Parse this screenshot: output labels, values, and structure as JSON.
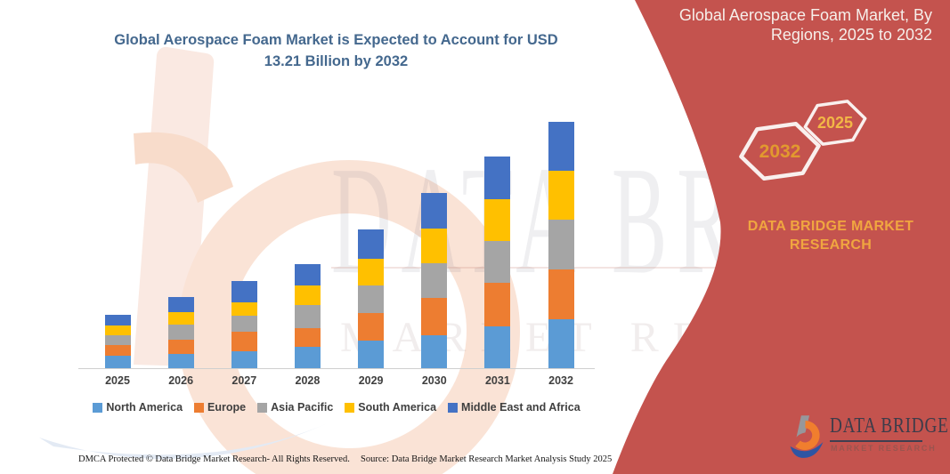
{
  "main_title": {
    "line1": "Global Aerospace Foam Market is Expected to Account for USD",
    "line2": "13.21 Billion by 2032"
  },
  "chart_data": {
    "type": "bar",
    "stacked": true,
    "title": "Global Aerospace Foam Market is Expected to Account for USD 13.21 Billion by 2032",
    "unit": "USD Billion",
    "categories": [
      "2025",
      "2026",
      "2027",
      "2028",
      "2029",
      "2030",
      "2031",
      "2032"
    ],
    "series": [
      {
        "name": "North America",
        "color": "#5B9BD5",
        "values": [
          0.71,
          0.79,
          0.95,
          1.19,
          1.54,
          1.81,
          2.27,
          2.66
        ]
      },
      {
        "name": "Europe",
        "color": "#ED7D31",
        "values": [
          0.56,
          0.79,
          1.06,
          0.98,
          1.46,
          2.0,
          2.33,
          2.68
        ]
      },
      {
        "name": "Asia Pacific",
        "color": "#A5A5A5",
        "values": [
          0.55,
          0.79,
          0.84,
          1.24,
          1.46,
          1.85,
          2.23,
          2.63
        ]
      },
      {
        "name": "South America",
        "color": "#FFC000",
        "values": [
          0.51,
          0.68,
          0.71,
          1.06,
          1.43,
          1.85,
          2.23,
          2.61
        ]
      },
      {
        "name": "Middle East and Africa",
        "color": "#4472C4",
        "values": [
          0.57,
          0.79,
          1.14,
          1.16,
          1.58,
          1.9,
          2.31,
          2.64
        ]
      }
    ],
    "estimated_totals": [
      2.9,
      3.84,
      4.7,
      5.63,
      7.47,
      9.41,
      11.37,
      13.22
    ],
    "ylim": [
      0,
      13.21
    ],
    "gridlines": false,
    "y_axis_visible": false,
    "legend_position": "bottom"
  },
  "footer": {
    "dmca": "DMCA Protected © Data Bridge Market Research-  All Rights Reserved.",
    "source": "Source: Data Bridge Market Research  Market Analysis Study 2025"
  },
  "side_panel": {
    "title_line1": "Global Aerospace Foam Market, By",
    "title_line2": "Regions, 2025 to 2032",
    "hexagons": [
      {
        "year": "2032"
      },
      {
        "year": "2025"
      }
    ],
    "caption_line1": "DATA BRIDGE MARKET",
    "caption_line2": "RESEARCH",
    "logo": {
      "wordmark": "DATA BRIDGE",
      "subtitle": "MARKET RESEARCH"
    }
  },
  "watermark": {
    "brand_text": "DATA BRIDGE",
    "brand_subtext": "MARKET RESEARCH"
  },
  "colors": {
    "panel_red": "#C4534E",
    "title_blue": "#44688E",
    "panel_title_text": "#F6EFEA",
    "gold_caption": "#F0A640",
    "hex_year_2032": "#E2992F",
    "hex_year_2025": "#F2B746",
    "axis_text": "#3F3F3F",
    "footer_text": "#141414",
    "logo_wordmark": "#3C3C4A",
    "logo_subtitle": "#9A544E",
    "north_america": "#5B9BD5",
    "europe": "#ED7D31",
    "asia_pacific": "#A5A5A5",
    "south_america": "#FFC000",
    "middle_east_africa": "#4472C4"
  }
}
